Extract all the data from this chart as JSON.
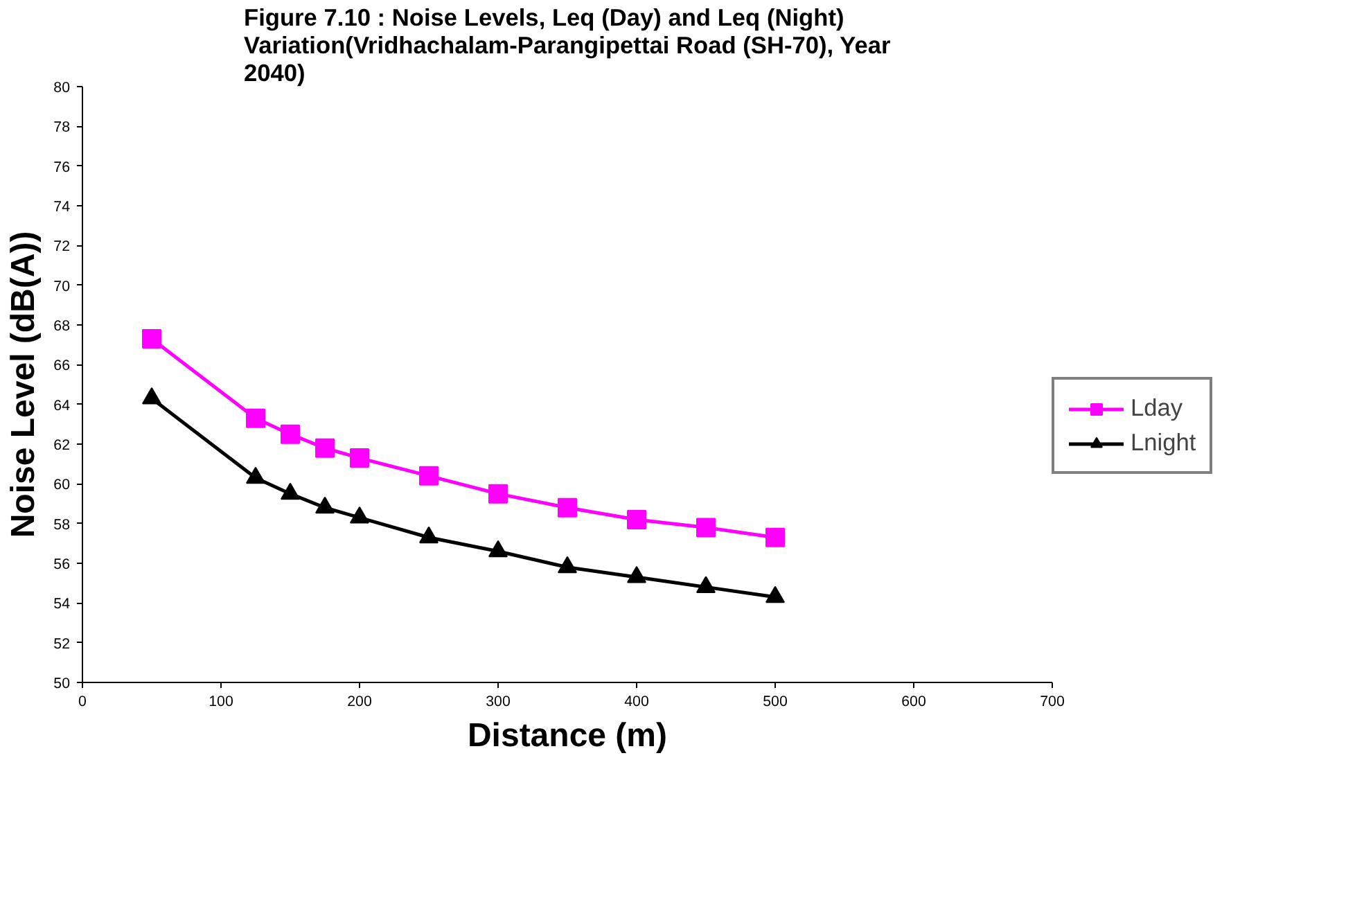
{
  "chart_data": {
    "type": "line",
    "title": "Figure 7.10  : Noise Levels, Leq (Day) and Leq (Night) Variation(Vridhachalam-Parangipettai Road (SH-70), Year 2040)",
    "xlabel": "Distance (m)",
    "ylabel": "Noise Level (dB(A))",
    "x": [
      50,
      125,
      150,
      175,
      200,
      250,
      300,
      350,
      400,
      450,
      500
    ],
    "series": [
      {
        "name": "Lday",
        "color": "#ff00ff",
        "marker": "square",
        "values": [
          67.3,
          63.3,
          62.5,
          61.8,
          61.3,
          60.4,
          59.5,
          58.8,
          58.2,
          57.8,
          57.3
        ]
      },
      {
        "name": "Lnight",
        "color": "#000000",
        "marker": "triangle",
        "values": [
          64.3,
          60.3,
          59.5,
          58.8,
          58.3,
          57.3,
          56.6,
          55.8,
          55.3,
          54.8,
          54.3
        ]
      }
    ],
    "xlim": [
      0,
      700
    ],
    "xticks": [
      0,
      100,
      200,
      300,
      400,
      500,
      600,
      700
    ],
    "ylim": [
      50,
      80
    ],
    "yticks": [
      50,
      52,
      54,
      56,
      58,
      60,
      62,
      64,
      66,
      68,
      70,
      72,
      74,
      76,
      78,
      80
    ],
    "grid": false,
    "legend": "right",
    "line_style": "solid"
  }
}
